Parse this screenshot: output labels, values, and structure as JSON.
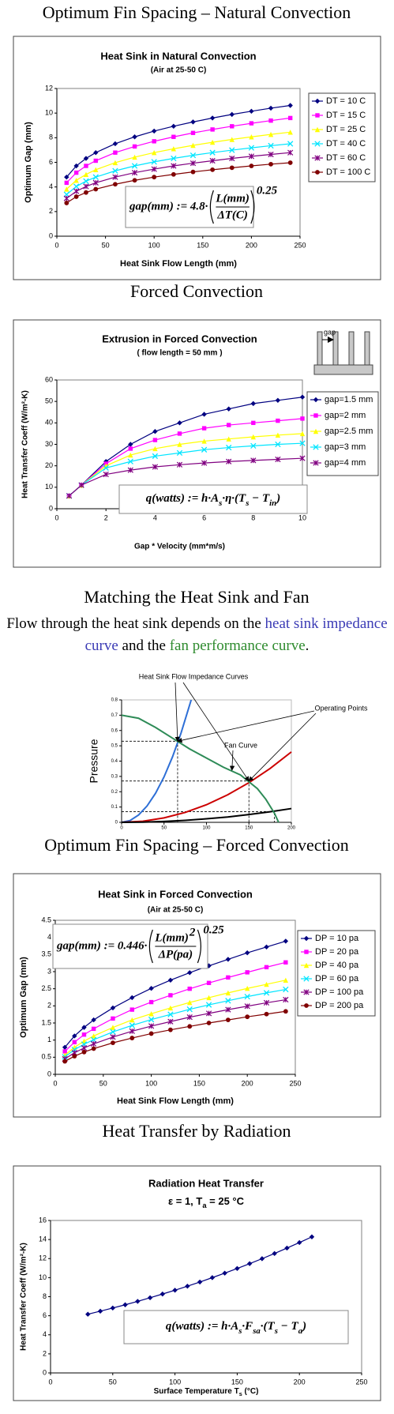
{
  "headings": [
    "Optimum Fin Spacing – Natural Convection",
    "Forced Convection",
    "Matching the Heat Sink and Fan",
    "Optimum Fin Spacing – Forced Convection",
    "Heat Transfer by Radiation"
  ],
  "intro": [
    "Flow through the heat sink depends on the ",
    "heat sink impedance curve",
    " and the ",
    "fan performance curve",
    "."
  ],
  "chart_data": [
    {
      "type": "line",
      "title": "Heat Sink in Natural Convection",
      "subtitle": "(Air at 25-50 C)",
      "xlabel": "Heat Sink Flow Length (mm)",
      "ylabel": "Optimum Gap (mm)",
      "xlim": [
        0,
        250
      ],
      "xticks": [
        0,
        50,
        100,
        150,
        200,
        250
      ],
      "ylim": [
        0,
        12
      ],
      "yticks": [
        0,
        2,
        4,
        6,
        8,
        10,
        12
      ],
      "markers": true,
      "legend": "right",
      "x": [
        10,
        20,
        30,
        40,
        60,
        80,
        100,
        120,
        140,
        160,
        180,
        200,
        220,
        240
      ],
      "series": [
        {
          "name": "DT = 10 C",
          "color": "#000080",
          "values": [
            4.8,
            5.71,
            6.32,
            6.79,
            7.51,
            8.07,
            8.54,
            8.93,
            9.28,
            9.6,
            9.89,
            10.15,
            10.4,
            10.62
          ]
        },
        {
          "name": "DT = 15 C",
          "color": "#ff00ff",
          "values": [
            4.34,
            5.16,
            5.71,
            6.13,
            6.79,
            7.29,
            7.71,
            8.07,
            8.39,
            8.67,
            8.93,
            9.17,
            9.39,
            9.6
          ]
        },
        {
          "name": "DT = 25 C",
          "color": "#ffff00",
          "values": [
            3.82,
            4.54,
            5.02,
            5.4,
            5.97,
            6.42,
            6.79,
            7.1,
            7.38,
            7.63,
            7.86,
            8.07,
            8.27,
            8.45
          ]
        },
        {
          "name": "DT = 40 C",
          "color": "#00e5ff",
          "values": [
            3.39,
            4.04,
            4.47,
            4.8,
            5.31,
            5.71,
            6.04,
            6.32,
            6.57,
            6.79,
            6.99,
            7.18,
            7.35,
            7.51
          ]
        },
        {
          "name": "DT = 60 C",
          "color": "#800080",
          "values": [
            3.07,
            3.65,
            4.04,
            4.34,
            4.8,
            5.16,
            5.45,
            5.71,
            5.93,
            6.13,
            6.32,
            6.49,
            6.64,
            6.79
          ]
        },
        {
          "name": "DT = 100 C",
          "color": "#800000",
          "values": [
            2.7,
            3.21,
            3.55,
            3.82,
            4.22,
            4.54,
            4.8,
            5.02,
            5.22,
            5.4,
            5.56,
            5.71,
            5.85,
            5.97
          ]
        }
      ],
      "formula": {
        "lead": "gap(mm) := 4.8·",
        "numerator": "L(mm)",
        "denominator": "ΔT(C)",
        "power": "0.25"
      }
    },
    {
      "type": "line",
      "title": "Extrusion in Forced Convection",
      "subtitle": "( flow length = 50 mm )",
      "xlabel": "Gap * Velocity (mm*m/s)",
      "ylabel": "Heat Transfer Coeff (W/m²-K)",
      "xlim": [
        0,
        10
      ],
      "xticks": [
        0,
        2,
        4,
        6,
        8,
        10
      ],
      "ylim": [
        0,
        60
      ],
      "yticks": [
        0,
        10,
        20,
        30,
        40,
        50,
        60
      ],
      "markers": true,
      "legend": "right",
      "inset_label": "gap",
      "x": [
        0.5,
        1,
        2,
        3,
        4,
        5,
        6,
        7,
        8,
        9,
        10
      ],
      "series": [
        {
          "name": "gap=1.5 mm",
          "color": "#000080",
          "values": [
            6,
            11,
            22,
            30,
            36,
            40,
            44,
            46.5,
            49,
            50.5,
            52
          ]
        },
        {
          "name": "gap=2 mm",
          "color": "#ff00ff",
          "values": [
            6,
            11,
            21,
            28,
            32,
            35,
            37.5,
            39,
            40,
            41,
            42
          ]
        },
        {
          "name": "gap=2.5 mm",
          "color": "#ffff00",
          "values": [
            6,
            11,
            20,
            25,
            28,
            30,
            31.5,
            32.5,
            33.5,
            34.3,
            35
          ]
        },
        {
          "name": "gap=3 mm",
          "color": "#00e5ff",
          "values": [
            6,
            11,
            19,
            22,
            24.5,
            26,
            27.5,
            28.5,
            29.3,
            30,
            30.5
          ]
        },
        {
          "name": "gap=4 mm",
          "color": "#800080",
          "values": [
            6,
            11,
            16,
            18,
            19.5,
            20.5,
            21.3,
            22,
            22.5,
            23,
            23.5
          ]
        }
      ],
      "formula": [
        "q(watts) := h·A",
        "s",
        "·η·(T",
        "s",
        " − T",
        "in",
        ")"
      ]
    },
    {
      "type": "line",
      "ylabel": "Pressure",
      "markers": false,
      "xlim": [
        0,
        200
      ],
      "xticks": [
        0,
        50,
        100,
        150,
        200
      ],
      "ylim": [
        0,
        0.8
      ],
      "yticks": [
        0,
        0.1,
        0.2,
        0.3,
        0.4,
        0.5,
        0.6,
        0.7,
        0.8
      ],
      "annotations": [
        "Heat Sink Flow Impedance Curves",
        "Operating Points",
        "Fan Curve"
      ],
      "series": [
        {
          "color": "#2e6fd6",
          "x": [
            0,
            10,
            20,
            30,
            40,
            50,
            60,
            70,
            82
          ],
          "values": [
            0,
            0.012,
            0.048,
            0.107,
            0.19,
            0.297,
            0.428,
            0.583,
            0.8
          ]
        },
        {
          "color": "#cc0000",
          "x": [
            0,
            25,
            50,
            75,
            100,
            125,
            150,
            175,
            200
          ],
          "values": [
            0,
            0.007,
            0.029,
            0.065,
            0.115,
            0.18,
            0.259,
            0.352,
            0.46
          ]
        },
        {
          "color": "#000000",
          "x": [
            0,
            25,
            50,
            75,
            100,
            125,
            150,
            175,
            200
          ],
          "values": [
            0,
            0.001,
            0.006,
            0.013,
            0.023,
            0.035,
            0.051,
            0.069,
            0.09
          ]
        },
        {
          "color": "#2e8b57",
          "x": [
            0,
            20,
            40,
            60,
            80,
            100,
            120,
            140,
            160,
            170,
            180,
            185
          ],
          "values": [
            0.7,
            0.68,
            0.62,
            0.55,
            0.48,
            0.42,
            0.36,
            0.31,
            0.22,
            0.15,
            0.06,
            0
          ]
        }
      ],
      "operating_points": {
        "x": [
          66,
          150,
          180
        ],
        "y": [
          0.53,
          0.27,
          0.07
        ]
      }
    },
    {
      "type": "line",
      "title": "Heat Sink in Forced Convection",
      "subtitle": "(Air at 25-50 C)",
      "xlabel": "Heat Sink Flow Length (mm)",
      "ylabel": "Optimum Gap (mm)",
      "xlim": [
        0,
        250
      ],
      "xticks": [
        0,
        50,
        100,
        150,
        200,
        250
      ],
      "ylim": [
        0,
        4.5
      ],
      "yticks": [
        0,
        0.5,
        1,
        1.5,
        2,
        2.5,
        3,
        3.5,
        4,
        4.5
      ],
      "markers": true,
      "legend": "right",
      "x": [
        10,
        20,
        30,
        40,
        60,
        80,
        100,
        120,
        140,
        160,
        180,
        200,
        220,
        240
      ],
      "series": [
        {
          "name": "DP = 10 pa",
          "color": "#000080",
          "values": [
            0.79,
            1.12,
            1.37,
            1.59,
            1.94,
            2.24,
            2.51,
            2.75,
            2.97,
            3.17,
            3.36,
            3.55,
            3.72,
            3.89
          ]
        },
        {
          "name": "DP = 20 pa",
          "color": "#ff00ff",
          "values": [
            0.67,
            0.94,
            1.16,
            1.33,
            1.63,
            1.89,
            2.11,
            2.31,
            2.5,
            2.67,
            2.83,
            2.98,
            3.13,
            3.27
          ]
        },
        {
          "name": "DP = 40 pa",
          "color": "#ffff00",
          "values": [
            0.56,
            0.79,
            0.97,
            1.12,
            1.37,
            1.59,
            1.77,
            1.94,
            2.1,
            2.24,
            2.38,
            2.51,
            2.63,
            2.75
          ]
        },
        {
          "name": "DP = 60 pa",
          "color": "#00e5ff",
          "values": [
            0.51,
            0.72,
            0.88,
            1.01,
            1.24,
            1.43,
            1.6,
            1.75,
            1.9,
            2.03,
            2.15,
            2.27,
            2.38,
            2.48
          ]
        },
        {
          "name": "DP = 100 pa",
          "color": "#800080",
          "values": [
            0.45,
            0.63,
            0.77,
            0.89,
            1.09,
            1.26,
            1.41,
            1.54,
            1.67,
            1.78,
            1.89,
            1.99,
            2.09,
            2.18
          ]
        },
        {
          "name": "DP = 200 pa",
          "color": "#800000",
          "values": [
            0.38,
            0.53,
            0.65,
            0.75,
            0.92,
            1.06,
            1.19,
            1.3,
            1.4,
            1.5,
            1.59,
            1.68,
            1.76,
            1.84
          ]
        }
      ],
      "formula": {
        "lead": "gap(mm) := 0.446·",
        "numerator": "L(mm)",
        "inner_power": "2",
        "denominator": "ΔP(pa)",
        "power": "0.25"
      }
    },
    {
      "type": "line",
      "title": "Radiation Heat Transfer",
      "subtitle": [
        "ε = 1, T",
        "a",
        " = 25 °C"
      ],
      "xlabel": [
        "Surface Temperature T",
        "s",
        " (°C)"
      ],
      "ylabel": "Heat Transfer Coeff (W/m²-K)",
      "xlim": [
        0,
        250
      ],
      "xticks": [
        0,
        50,
        100,
        150,
        200,
        250
      ],
      "ylim": [
        0,
        16
      ],
      "yticks": [
        0,
        2,
        4,
        6,
        8,
        10,
        12,
        14,
        16
      ],
      "markers": true,
      "x": [
        30,
        40,
        50,
        60,
        70,
        80,
        90,
        100,
        110,
        120,
        130,
        140,
        150,
        160,
        170,
        180,
        190,
        200,
        210
      ],
      "series": [
        {
          "color": "#000080",
          "values": [
            6.16,
            6.48,
            6.81,
            7.15,
            7.51,
            7.89,
            8.28,
            8.68,
            9.1,
            9.54,
            10.0,
            10.47,
            10.96,
            11.47,
            11.99,
            12.53,
            13.1,
            13.68,
            14.28
          ]
        }
      ],
      "formula": [
        "q(watts) := h·A",
        "s",
        "·F",
        "sa",
        "·(T",
        "s",
        " − T",
        "a",
        ")"
      ]
    }
  ]
}
